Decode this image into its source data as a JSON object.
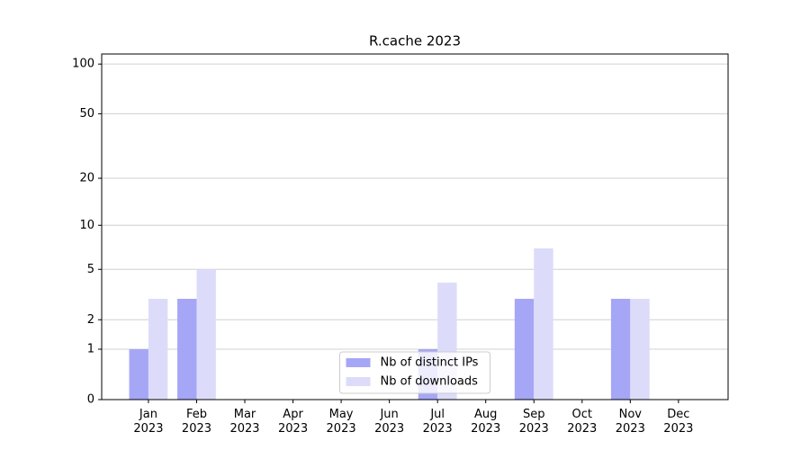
{
  "chart_data": {
    "type": "bar",
    "title": "R.cache 2023",
    "categories": [
      "Jan\n2023",
      "Feb\n2023",
      "Mar\n2023",
      "Apr\n2023",
      "May\n2023",
      "Jun\n2023",
      "Jul\n2023",
      "Aug\n2023",
      "Sep\n2023",
      "Oct\n2023",
      "Nov\n2023",
      "Dec\n2023"
    ],
    "series": [
      {
        "name": "Nb of distinct IPs",
        "color": "#a6a6f7",
        "values": [
          1,
          3,
          0,
          0,
          0,
          0,
          1,
          0,
          3,
          0,
          3,
          0
        ]
      },
      {
        "name": "Nb of downloads",
        "color": "#dcdcfa",
        "values": [
          3,
          5,
          0,
          0,
          0,
          0,
          4,
          0,
          7,
          0,
          3,
          0
        ]
      }
    ],
    "yscale": "log1p",
    "ylim": [
      0,
      115
    ],
    "yticks": [
      0,
      1,
      2,
      5,
      10,
      20,
      50,
      100
    ],
    "grid": true,
    "legend": "lower center"
  }
}
